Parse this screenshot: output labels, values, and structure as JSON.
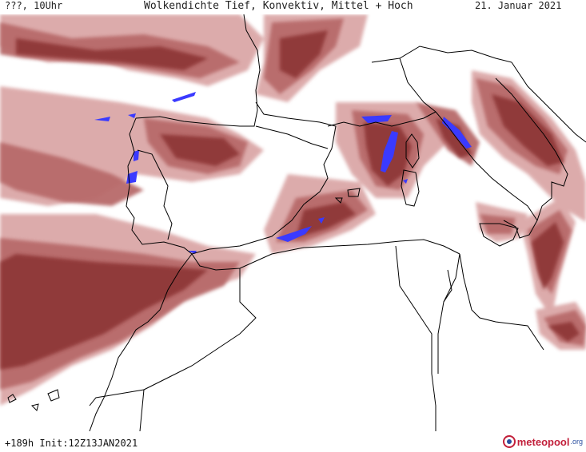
{
  "header": {
    "left_label": "???, 10Uhr",
    "title": "Wolkendichte  Tief, Konvektiv, Mittel + Hoch",
    "date": "21. Januar 2021"
  },
  "footer": {
    "init": "+189h Init:12Z13JAN2021",
    "logo_name": "meteopool",
    "logo_tld": ".org"
  },
  "colors": {
    "cloud_light": "#d9a3a3",
    "cloud_mid": "#b86b6b",
    "cloud_dark": "#8a3030",
    "convective": "#3a3aff",
    "coastline": "#000000",
    "background": "#ffffff"
  },
  "icons": [
    "meteopool-logo-icon"
  ]
}
